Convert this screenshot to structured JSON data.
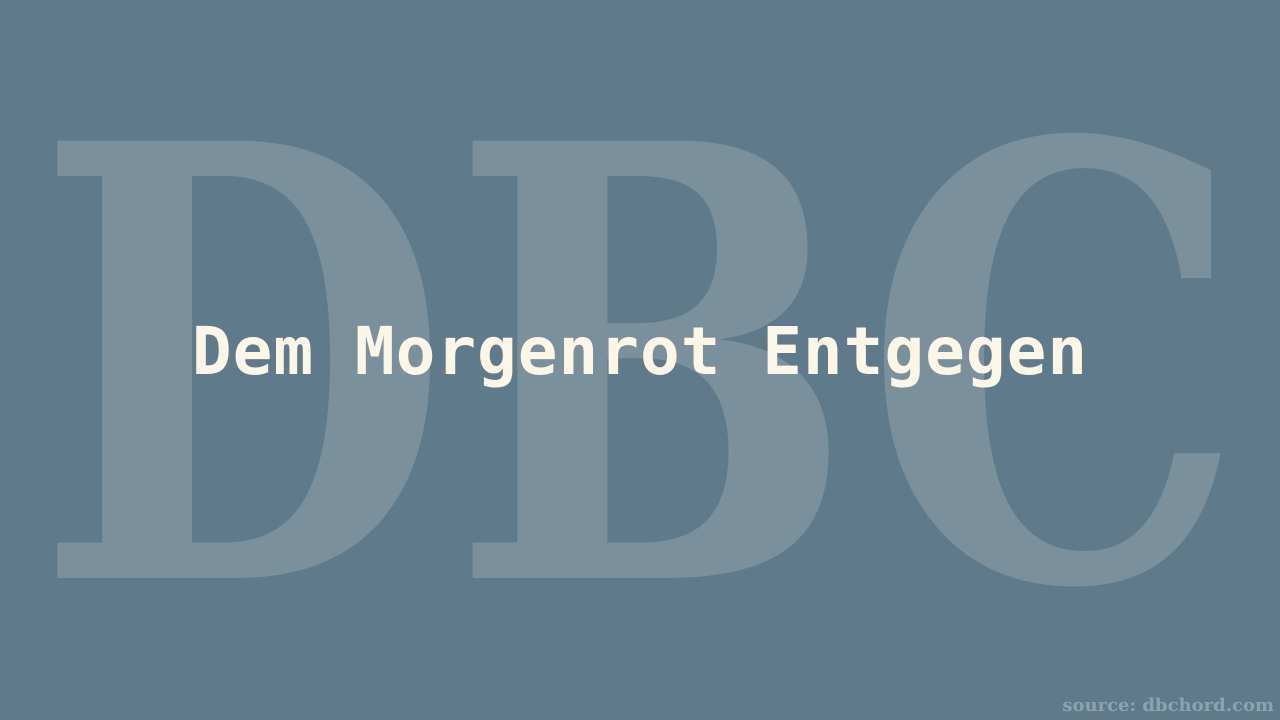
{
  "watermark": {
    "text": "DBC",
    "color": "#7a909c"
  },
  "title": "Dem Morgenrot Entgegen",
  "source": "source: dbchord.com",
  "colors": {
    "background": "#5f7b8b",
    "title": "#fdf6e6",
    "source": "#8ea2ae"
  }
}
